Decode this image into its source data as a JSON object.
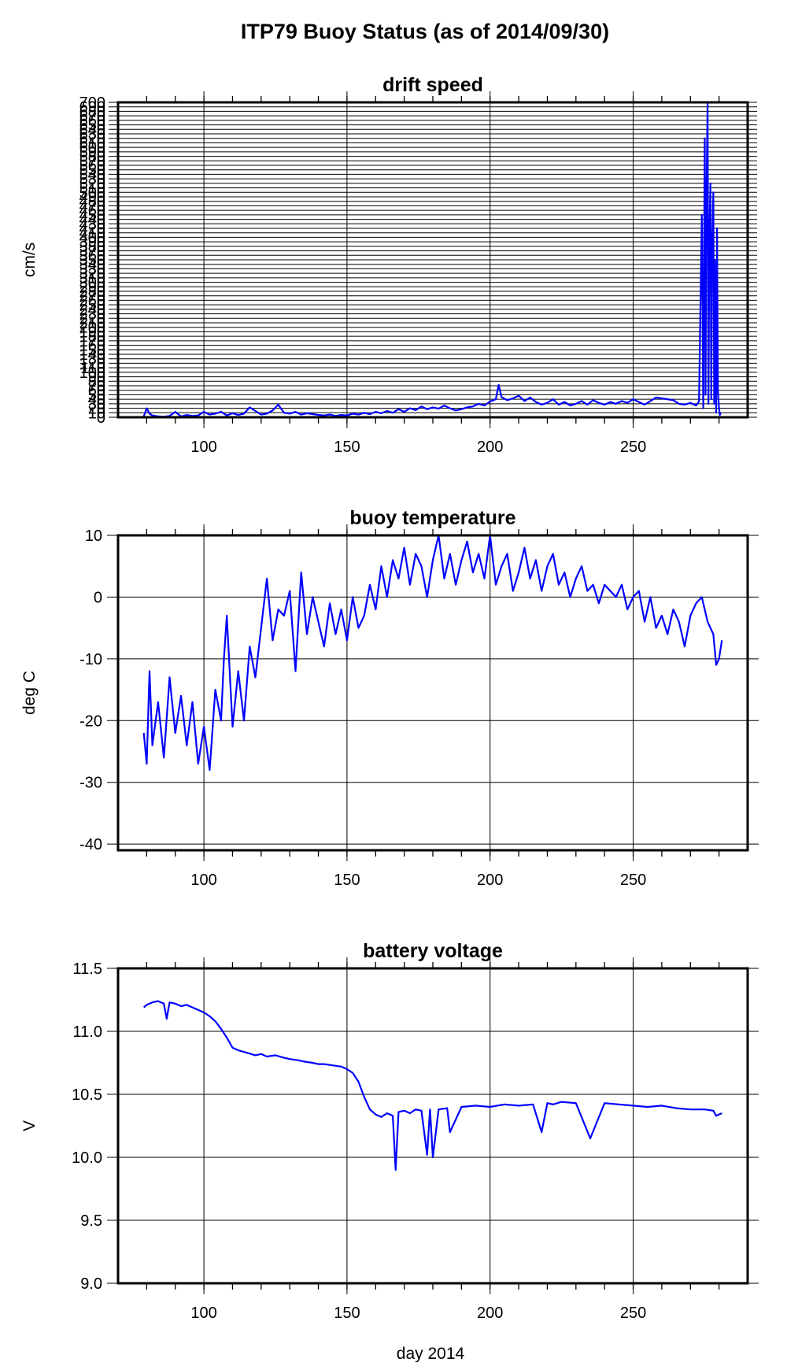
{
  "figure": {
    "title": "ITP79 Buoy Status (as of 2014/09/30)",
    "xlabel": "day 2014"
  },
  "chart_data": [
    {
      "type": "line",
      "title": "drift speed",
      "ylabel": "cm/s",
      "xlim": [
        70,
        290
      ],
      "ylim": [
        0,
        700
      ],
      "x_ticks": [
        100,
        150,
        200,
        250
      ],
      "grid": true,
      "series_color": "#0000ff",
      "y_tick_step": 10,
      "y_tick_label_step": 10,
      "series": [
        {
          "x": [
            79,
            80,
            81,
            82,
            84,
            86,
            88,
            90,
            92,
            94,
            96,
            98,
            100,
            102,
            104,
            106,
            108,
            110,
            112,
            114,
            116,
            118,
            120,
            122,
            124,
            126,
            128,
            130,
            132,
            134,
            136,
            138,
            140,
            142,
            144,
            146,
            148,
            150,
            152,
            154,
            156,
            158,
            160,
            162,
            164,
            166,
            168,
            170,
            172,
            174,
            176,
            178,
            180,
            182,
            184,
            186,
            188,
            190,
            192,
            194,
            196,
            198,
            200,
            202,
            203,
            204,
            206,
            208,
            210,
            212,
            214,
            216,
            218,
            220,
            222,
            224,
            226,
            228,
            230,
            232,
            234,
            236,
            238,
            240,
            242,
            244,
            246,
            248,
            250,
            252,
            254,
            256,
            258,
            260,
            262,
            264,
            266,
            268,
            270,
            272,
            273,
            274,
            274.5,
            275,
            275.3,
            275.6,
            276,
            276.3,
            276.6,
            277,
            277.3,
            277.6,
            278,
            278.3,
            278.6,
            279,
            279.3,
            279.6,
            280,
            280.3,
            280.6
          ],
          "y": [
            2,
            20,
            8,
            4,
            2,
            1,
            3,
            12,
            2,
            5,
            3,
            4,
            12,
            6,
            8,
            12,
            4,
            9,
            5,
            8,
            22,
            14,
            6,
            8,
            15,
            28,
            10,
            8,
            12,
            6,
            9,
            7,
            5,
            4,
            6,
            3,
            5,
            4,
            8,
            6,
            10,
            7,
            12,
            9,
            14,
            10,
            18,
            12,
            20,
            16,
            24,
            18,
            22,
            19,
            26,
            20,
            15,
            18,
            22,
            24,
            30,
            26,
            35,
            40,
            72,
            45,
            38,
            42,
            48,
            36,
            44,
            34,
            28,
            32,
            40,
            28,
            34,
            26,
            30,
            36,
            28,
            38,
            32,
            28,
            34,
            30,
            36,
            32,
            40,
            34,
            28,
            36,
            44,
            42,
            40,
            38,
            30,
            28,
            32,
            26,
            35,
            450,
            20,
            620,
            50,
            480,
            700,
            30,
            400,
            520,
            40,
            380,
            500,
            30,
            350,
            10,
            420,
            60,
            20,
            5,
            10
          ]
        }
      ]
    },
    {
      "type": "line",
      "title": "buoy temperature",
      "ylabel": "deg C",
      "xlim": [
        70,
        290
      ],
      "ylim": [
        -41,
        10
      ],
      "x_ticks": [
        100,
        150,
        200,
        250
      ],
      "y_ticks": [
        -40,
        -30,
        -20,
        -10,
        0,
        10
      ],
      "grid": true,
      "series_color": "#0000ff",
      "series": [
        {
          "x": [
            79,
            80,
            81,
            82,
            84,
            86,
            88,
            90,
            92,
            94,
            96,
            98,
            100,
            102,
            104,
            106,
            107,
            108,
            110,
            112,
            114,
            116,
            118,
            120,
            122,
            124,
            126,
            128,
            130,
            132,
            134,
            136,
            138,
            140,
            142,
            144,
            146,
            148,
            150,
            152,
            154,
            156,
            158,
            160,
            162,
            164,
            166,
            168,
            170,
            172,
            174,
            176,
            178,
            180,
            182,
            184,
            186,
            188,
            190,
            192,
            194,
            196,
            198,
            200,
            202,
            204,
            206,
            208,
            210,
            212,
            214,
            216,
            218,
            220,
            222,
            224,
            226,
            228,
            230,
            232,
            234,
            236,
            238,
            240,
            242,
            244,
            246,
            248,
            250,
            252,
            254,
            256,
            258,
            260,
            262,
            264,
            266,
            268,
            270,
            272,
            274,
            276,
            278,
            279,
            280,
            281
          ],
          "y": [
            -22,
            -27,
            -12,
            -24,
            -17,
            -26,
            -13,
            -22,
            -16,
            -24,
            -17,
            -27,
            -21,
            -28,
            -15,
            -20,
            -10,
            -3,
            -21,
            -12,
            -20,
            -8,
            -13,
            -5,
            3,
            -7,
            -2,
            -3,
            1,
            -12,
            4,
            -6,
            0,
            -4,
            -8,
            -1,
            -6,
            -2,
            -7,
            0,
            -5,
            -3,
            2,
            -2,
            5,
            0,
            6,
            3,
            8,
            2,
            7,
            5,
            0,
            6,
            10,
            3,
            7,
            2,
            6,
            9,
            4,
            7,
            3,
            10,
            2,
            5,
            7,
            1,
            4,
            8,
            3,
            6,
            1,
            5,
            7,
            2,
            4,
            0,
            3,
            5,
            1,
            2,
            -1,
            2,
            1,
            0,
            2,
            -2,
            0,
            1,
            -4,
            0,
            -5,
            -3,
            -6,
            -2,
            -4,
            -8,
            -3,
            -1,
            0,
            -4,
            -6,
            -11,
            -10,
            -7
          ]
        }
      ]
    },
    {
      "type": "line",
      "title": "battery voltage",
      "ylabel": "V",
      "xlim": [
        70,
        290
      ],
      "ylim": [
        9.0,
        11.5
      ],
      "x_ticks": [
        100,
        150,
        200,
        250
      ],
      "y_ticks": [
        "9.0",
        "9.5",
        "10.0",
        "10.5",
        "11.0",
        "11.5"
      ],
      "grid": true,
      "series_color": "#0000ff",
      "series": [
        {
          "x": [
            79,
            80,
            82,
            84,
            86,
            87,
            88,
            90,
            92,
            94,
            96,
            98,
            100,
            102,
            104,
            106,
            108,
            110,
            112,
            115,
            118,
            120,
            122,
            125,
            128,
            130,
            133,
            135,
            138,
            140,
            142,
            145,
            148,
            150,
            152,
            154,
            156,
            158,
            160,
            162,
            164,
            166,
            167,
            168,
            170,
            172,
            174,
            176,
            178,
            179,
            180,
            182,
            185,
            186,
            190,
            195,
            200,
            205,
            210,
            215,
            218,
            220,
            222,
            225,
            230,
            235,
            240,
            245,
            250,
            255,
            260,
            265,
            270,
            275,
            278,
            279,
            280,
            281
          ],
          "y": [
            11.19,
            11.21,
            11.23,
            11.24,
            11.22,
            11.1,
            11.23,
            11.22,
            11.2,
            11.21,
            11.19,
            11.17,
            11.15,
            11.12,
            11.08,
            11.02,
            10.95,
            10.87,
            10.85,
            10.83,
            10.81,
            10.82,
            10.8,
            10.81,
            10.79,
            10.78,
            10.77,
            10.76,
            10.75,
            10.74,
            10.74,
            10.73,
            10.72,
            10.7,
            10.67,
            10.6,
            10.48,
            10.38,
            10.34,
            10.32,
            10.35,
            10.33,
            9.9,
            10.36,
            10.37,
            10.35,
            10.38,
            10.37,
            10.02,
            10.38,
            10.0,
            10.38,
            10.39,
            10.2,
            10.4,
            10.41,
            10.4,
            10.42,
            10.41,
            10.42,
            10.2,
            10.43,
            10.42,
            10.44,
            10.43,
            10.15,
            10.43,
            10.42,
            10.41,
            10.4,
            10.41,
            10.39,
            10.38,
            10.38,
            10.37,
            10.33,
            10.34,
            10.35
          ]
        }
      ]
    }
  ]
}
